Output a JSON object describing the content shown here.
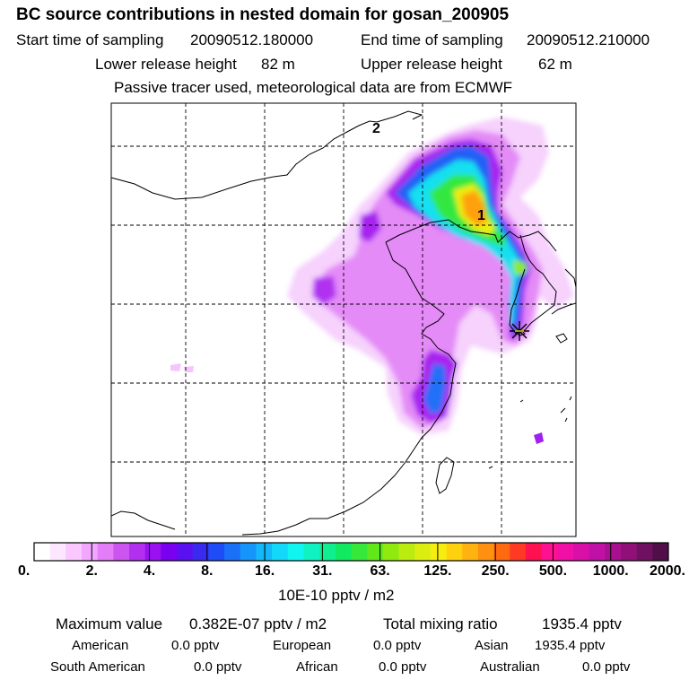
{
  "header": {
    "title": "BC  source contributions in nested domain for gosan_200905",
    "start_label": "Start time of sampling",
    "start_value": "20090512.180000",
    "end_label": "End time of sampling",
    "end_value": "20090512.210000",
    "lower_label": "Lower release height",
    "lower_value": "82 m",
    "upper_label": "Upper release height",
    "upper_value": "62 m",
    "note": "Passive tracer used, meteorological data are from ECMWF"
  },
  "map": {
    "markers": [
      "1",
      "2"
    ],
    "receptor_icon": "asterisk-receptor-icon"
  },
  "chart_data": {
    "type": "heatmap",
    "title": "BC  source contributions in nested domain for gosan_200905",
    "units": "10E-10 pptv / m2",
    "colorbar_ticks": [
      "0.",
      "2.",
      "4.",
      "8.",
      "16.",
      "31.",
      "63.",
      "125.",
      "250.",
      "500.",
      "1000.",
      "2000."
    ],
    "colorbar_colors": [
      "#ffffff",
      "#fde6ff",
      "#f8c8ff",
      "#f2a6ff",
      "#e47df8",
      "#cc55f0",
      "#b22ff0",
      "#9a10f0",
      "#7a00f0",
      "#5a10f0",
      "#3a2af0",
      "#1e4cf6",
      "#1b70f8",
      "#1595f9",
      "#14b7fa",
      "#14d8fa",
      "#10f5f0",
      "#10f2c0",
      "#10ef90",
      "#10ea60",
      "#35e83a",
      "#60e81a",
      "#90ea10",
      "#baec10",
      "#dcee10",
      "#f5ee10",
      "#ffd210",
      "#ffb210",
      "#ff9010",
      "#ff6a10",
      "#ff3a24",
      "#ff1050",
      "#ff1090",
      "#f010a8",
      "#d810a8",
      "#c010a6",
      "#a8108f",
      "#901078",
      "#701060",
      "#500f48"
    ],
    "maximum_value_label": "Maximum value",
    "maximum_value": "0.382E-07 pptv / m2",
    "total_mixing_ratio_label": "Total mixing ratio",
    "total_mixing_ratio": "1935.4 pptv",
    "regional_contributions": [
      {
        "region": "American",
        "value": "0.0 pptv"
      },
      {
        "region": "European",
        "value": "0.0 pptv"
      },
      {
        "region": "Asian",
        "value": "1935.4 pptv"
      },
      {
        "region": "South American",
        "value": "0.0 pptv"
      },
      {
        "region": "African",
        "value": "0.0 pptv"
      },
      {
        "region": "Australian",
        "value": "0.0 pptv"
      }
    ]
  }
}
